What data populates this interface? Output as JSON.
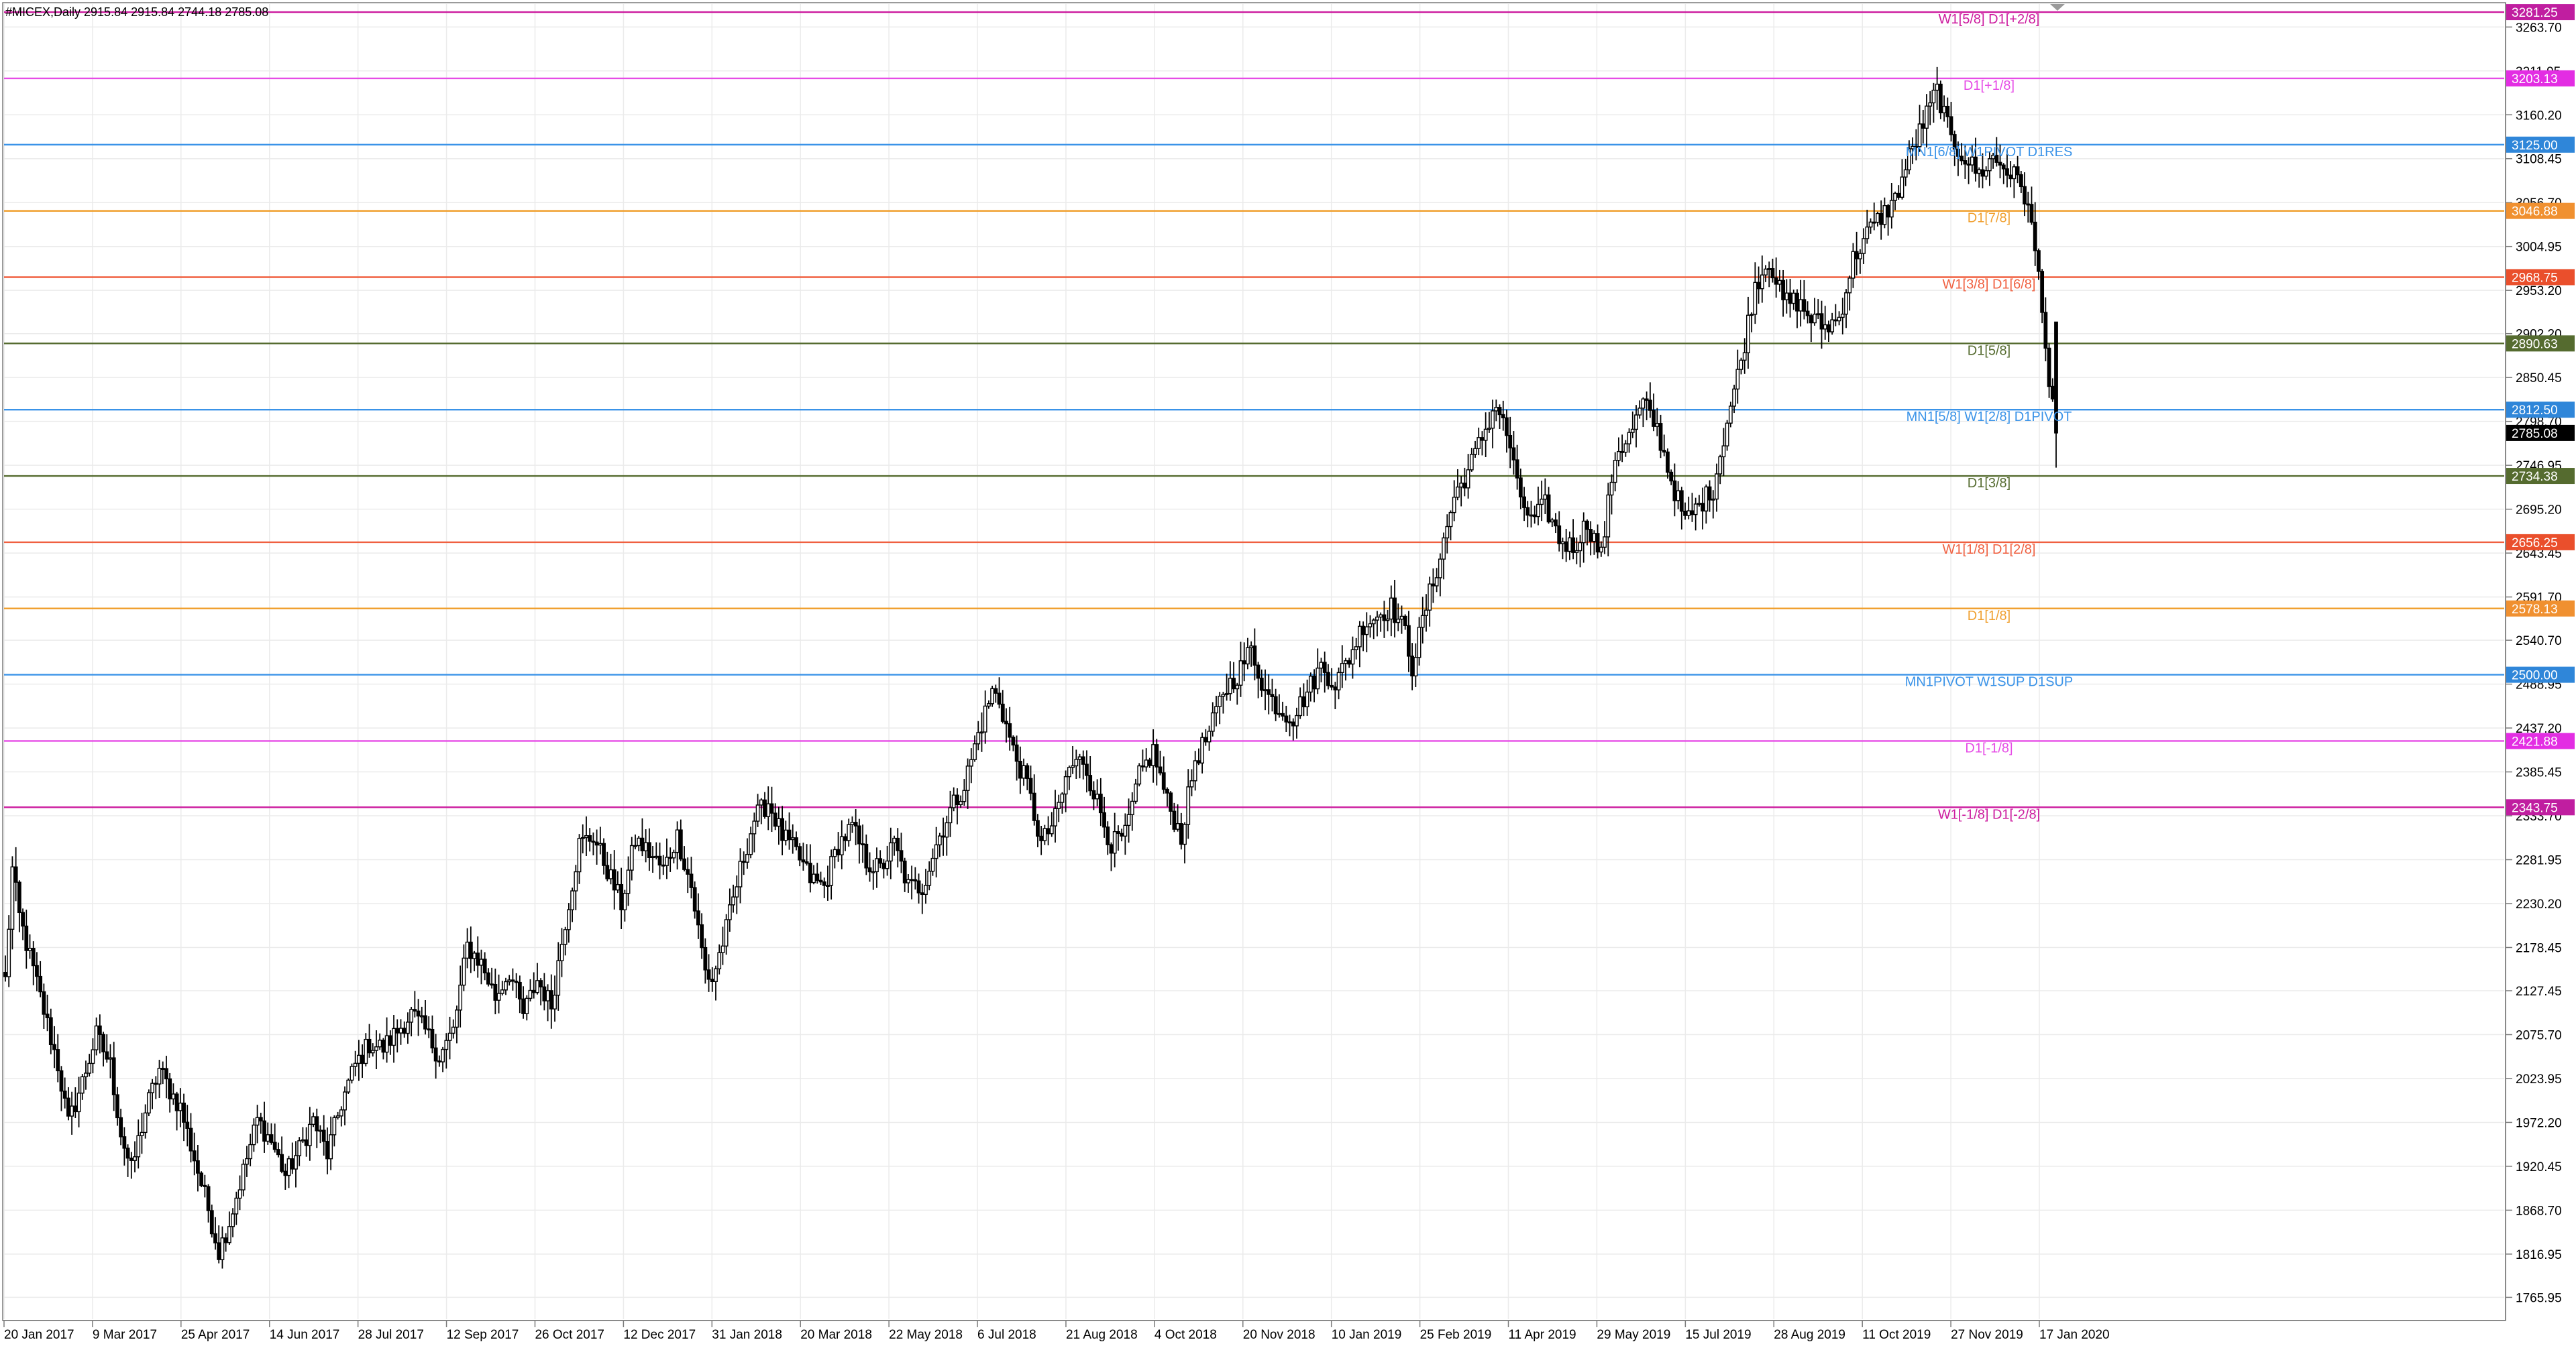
{
  "header": {
    "title": "#MICEX,Daily  2915.84 2915.84 2744.18 2785.08"
  },
  "chart_data": {
    "type": "candlestick",
    "symbol": "#MICEX",
    "timeframe": "Daily",
    "ohlc_current": {
      "open": 2915.84,
      "high": 2915.84,
      "low": 2744.18,
      "close": 2785.08
    },
    "ylim": [
      1740.2,
      3290.8
    ],
    "grid": true,
    "y_ticks": [
      "3263.70",
      "3211.95",
      "3160.20",
      "3108.45",
      "3056.70",
      "3004.95",
      "2953.20",
      "2902.20",
      "2850.45",
      "2798.70",
      "2746.95",
      "2695.20",
      "2643.45",
      "2591.70",
      "2540.70",
      "2488.95",
      "2437.20",
      "2385.45",
      "2333.70",
      "2281.95",
      "2230.20",
      "2178.45",
      "2127.45",
      "2075.70",
      "2023.95",
      "1972.20",
      "1920.45",
      "1868.70",
      "1816.95",
      "1765.95"
    ],
    "x_labels": [
      "20 Jan 2017",
      "9 Mar 2017",
      "25 Apr 2017",
      "14 Jun 2017",
      "28 Jul 2017",
      "12 Sep 2017",
      "26 Oct 2017",
      "12 Dec 2017",
      "31 Jan 2018",
      "20 Mar 2018",
      "22 May 2018",
      "6 Jul 2018",
      "21 Aug 2018",
      "4 Oct 2018",
      "20 Nov 2018",
      "10 Jan 2019",
      "25 Feb 2019",
      "11 Apr 2019",
      "29 May 2019",
      "15 Jul 2019",
      "28 Aug 2019",
      "11 Oct 2019",
      "27 Nov 2019",
      "17 Jan 2020"
    ],
    "price_keypoints": [
      [
        0,
        2140
      ],
      [
        2,
        2270
      ],
      [
        4,
        2215
      ],
      [
        10,
        2120
      ],
      [
        15,
        2040
      ],
      [
        18,
        1970
      ],
      [
        22,
        2020
      ],
      [
        26,
        2075
      ],
      [
        30,
        2040
      ],
      [
        33,
        1960
      ],
      [
        36,
        1915
      ],
      [
        40,
        1985
      ],
      [
        44,
        2035
      ],
      [
        47,
        2010
      ],
      [
        50,
        1990
      ],
      [
        54,
        1930
      ],
      [
        58,
        1870
      ],
      [
        61,
        1820
      ],
      [
        64,
        1855
      ],
      [
        68,
        1915
      ],
      [
        72,
        1975
      ],
      [
        76,
        1950
      ],
      [
        80,
        1910
      ],
      [
        84,
        1940
      ],
      [
        88,
        1975
      ],
      [
        92,
        1935
      ],
      [
        96,
        1995
      ],
      [
        100,
        2040
      ],
      [
        104,
        2065
      ],
      [
        108,
        2060
      ],
      [
        112,
        2080
      ],
      [
        116,
        2100
      ],
      [
        120,
        2080
      ],
      [
        124,
        2050
      ],
      [
        128,
        2080
      ],
      [
        132,
        2180
      ],
      [
        136,
        2160
      ],
      [
        140,
        2120
      ],
      [
        144,
        2150
      ],
      [
        148,
        2100
      ],
      [
        152,
        2140
      ],
      [
        156,
        2110
      ],
      [
        160,
        2210
      ],
      [
        164,
        2300
      ],
      [
        168,
        2310
      ],
      [
        172,
        2270
      ],
      [
        176,
        2230
      ],
      [
        180,
        2305
      ],
      [
        184,
        2290
      ],
      [
        188,
        2270
      ],
      [
        192,
        2310
      ],
      [
        196,
        2250
      ],
      [
        200,
        2150
      ],
      [
        202,
        2140
      ],
      [
        206,
        2200
      ],
      [
        210,
        2270
      ],
      [
        214,
        2330
      ],
      [
        218,
        2350
      ],
      [
        222,
        2310
      ],
      [
        226,
        2290
      ],
      [
        230,
        2260
      ],
      [
        234,
        2250
      ],
      [
        238,
        2300
      ],
      [
        242,
        2320
      ],
      [
        246,
        2280
      ],
      [
        250,
        2270
      ],
      [
        254,
        2300
      ],
      [
        258,
        2250
      ],
      [
        262,
        2250
      ],
      [
        266,
        2300
      ],
      [
        270,
        2340
      ],
      [
        274,
        2370
      ],
      [
        278,
        2430
      ],
      [
        282,
        2480
      ],
      [
        284,
        2470
      ],
      [
        288,
        2410
      ],
      [
        292,
        2370
      ],
      [
        296,
        2300
      ],
      [
        300,
        2330
      ],
      [
        304,
        2390
      ],
      [
        308,
        2400
      ],
      [
        312,
        2350
      ],
      [
        316,
        2300
      ],
      [
        320,
        2310
      ],
      [
        324,
        2380
      ],
      [
        328,
        2410
      ],
      [
        332,
        2350
      ],
      [
        336,
        2310
      ],
      [
        340,
        2400
      ],
      [
        344,
        2430
      ],
      [
        348,
        2480
      ],
      [
        352,
        2500
      ],
      [
        356,
        2530
      ],
      [
        360,
        2480
      ],
      [
        364,
        2460
      ],
      [
        368,
        2450
      ],
      [
        372,
        2480
      ],
      [
        376,
        2510
      ],
      [
        380,
        2490
      ],
      [
        384,
        2520
      ],
      [
        388,
        2560
      ],
      [
        392,
        2570
      ],
      [
        396,
        2580
      ],
      [
        400,
        2550
      ],
      [
        402,
        2510
      ],
      [
        406,
        2580
      ],
      [
        410,
        2640
      ],
      [
        414,
        2710
      ],
      [
        418,
        2740
      ],
      [
        422,
        2780
      ],
      [
        426,
        2820
      ],
      [
        430,
        2770
      ],
      [
        432,
        2720
      ],
      [
        436,
        2680
      ],
      [
        440,
        2700
      ],
      [
        444,
        2660
      ],
      [
        448,
        2650
      ],
      [
        452,
        2680
      ],
      [
        456,
        2640
      ],
      [
        460,
        2760
      ],
      [
        464,
        2780
      ],
      [
        468,
        2820
      ],
      [
        472,
        2790
      ],
      [
        476,
        2730
      ],
      [
        480,
        2680
      ],
      [
        484,
        2700
      ],
      [
        488,
        2720
      ],
      [
        492,
        2800
      ],
      [
        496,
        2870
      ],
      [
        500,
        2960
      ],
      [
        504,
        2990
      ],
      [
        508,
        2940
      ],
      [
        512,
        2940
      ],
      [
        516,
        2920
      ],
      [
        520,
        2910
      ],
      [
        524,
        2920
      ],
      [
        528,
        2990
      ],
      [
        532,
        3020
      ],
      [
        536,
        3040
      ],
      [
        540,
        3060
      ],
      [
        544,
        3110
      ],
      [
        548,
        3150
      ],
      [
        552,
        3190
      ],
      [
        554,
        3160
      ],
      [
        556,
        3130
      ],
      [
        560,
        3110
      ],
      [
        564,
        3090
      ],
      [
        568,
        3110
      ],
      [
        572,
        3095
      ],
      [
        576,
        3080
      ],
      [
        578,
        3050
      ],
      [
        580,
        3000
      ],
      [
        582,
        2940
      ],
      [
        584,
        2840
      ],
      [
        586,
        2785
      ]
    ],
    "levels": [
      {
        "value": 3281.25,
        "value_label": "3281.25",
        "label": "W1[5/8] D1[+2/8]",
        "color": "#cc1a9e",
        "tag_color": "#c01ea0"
      },
      {
        "value": 3203.13,
        "value_label": "3203.13",
        "label": "D1[+1/8]",
        "color": "#e64ce6",
        "tag_color": "#e32de3"
      },
      {
        "value": 3125.0,
        "value_label": "3125.00",
        "label": "MN1[6/8] W1PIVOT D1RES",
        "color": "#3a93e8",
        "tag_color": "#2f86d9"
      },
      {
        "value": 3046.88,
        "value_label": "3046.88",
        "label": "D1[7/8]",
        "color": "#f0a030",
        "tag_color": "#f09030"
      },
      {
        "value": 2968.75,
        "value_label": "2968.75",
        "label": "W1[3/8] D1[6/8]",
        "color": "#f06040",
        "tag_color": "#ea4f2c"
      },
      {
        "value": 2890.63,
        "value_label": "2890.63",
        "label": "D1[5/8]",
        "color": "#556b2f",
        "tag_color": "#556b2f"
      },
      {
        "value": 2812.5,
        "value_label": "2812.50",
        "label": "MN1[5/8] W1[2/8] D1PIVOT",
        "color": "#3a93e8",
        "tag_color": "#2f86d9"
      },
      {
        "value": 2734.38,
        "value_label": "2734.38",
        "label": "D1[3/8]",
        "color": "#556b2f",
        "tag_color": "#556b2f"
      },
      {
        "value": 2656.25,
        "value_label": "2656.25",
        "label": "W1[1/8] D1[2/8]",
        "color": "#f06040",
        "tag_color": "#ea4f2c"
      },
      {
        "value": 2578.13,
        "value_label": "2578.13",
        "label": "D1[1/8]",
        "color": "#f0a030",
        "tag_color": "#f09030"
      },
      {
        "value": 2500.0,
        "value_label": "2500.00",
        "label": "MN1PIVOT W1SUP D1SUP",
        "color": "#3a93e8",
        "tag_color": "#2f86d9"
      },
      {
        "value": 2421.88,
        "value_label": "2421.88",
        "label": "D1[-1/8]",
        "color": "#e64ce6",
        "tag_color": "#e32de3"
      },
      {
        "value": 2343.75,
        "value_label": "2343.75",
        "label": "W1[-1/8] D1[-2/8]",
        "color": "#cc1a9e",
        "tag_color": "#c01ea0"
      }
    ],
    "current_price": {
      "value": 2785.08,
      "label": "2785.08"
    }
  }
}
